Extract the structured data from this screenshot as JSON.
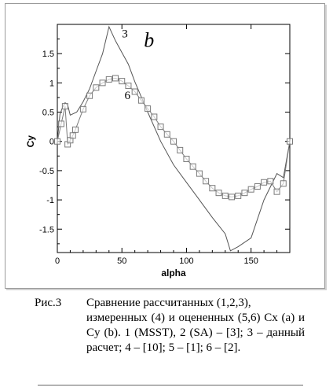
{
  "chart_data": {
    "type": "line",
    "panel_label": "b",
    "xlabel": "alpha",
    "ylabel": "Cy",
    "xlim": [
      0,
      180
    ],
    "ylim": [
      -1.9,
      2.0
    ],
    "x_ticks": [
      0,
      50,
      100,
      150
    ],
    "y_ticks": [
      -1.5,
      -1,
      -0.5,
      0,
      0.5,
      1,
      1.5
    ],
    "grid": false,
    "series": [
      {
        "name": "3",
        "color": "#555555",
        "marker": "none",
        "label_pos": [
          50,
          1.78
        ],
        "points": [
          [
            0,
            0
          ],
          [
            2,
            0.46
          ],
          [
            4,
            0.58
          ],
          [
            6,
            0.66
          ],
          [
            8,
            0.62
          ],
          [
            10,
            0.45
          ],
          [
            15,
            0.5
          ],
          [
            20,
            0.68
          ],
          [
            25,
            0.9
          ],
          [
            30,
            1.2
          ],
          [
            35,
            1.5
          ],
          [
            40,
            1.96
          ],
          [
            45,
            1.72
          ],
          [
            50,
            1.52
          ],
          [
            55,
            1.32
          ],
          [
            60,
            1.02
          ],
          [
            70,
            0.5
          ],
          [
            80,
            0
          ],
          [
            90,
            -0.4
          ],
          [
            100,
            -0.7
          ],
          [
            110,
            -1.0
          ],
          [
            120,
            -1.3
          ],
          [
            130,
            -1.58
          ],
          [
            134,
            -1.87
          ],
          [
            140,
            -1.8
          ],
          [
            150,
            -1.65
          ],
          [
            160,
            -1.0
          ],
          [
            170,
            -0.55
          ],
          [
            175,
            -0.62
          ],
          [
            180,
            0
          ]
        ]
      },
      {
        "name": "6",
        "color": "#7a7a7a",
        "marker": "square",
        "label_pos": [
          52,
          0.72
        ],
        "points": [
          [
            0,
            0
          ],
          [
            3,
            0.3
          ],
          [
            6,
            0.6
          ],
          [
            8,
            -0.05
          ],
          [
            10,
            0.02
          ],
          [
            12,
            0.1
          ],
          [
            14,
            0.2
          ],
          [
            20,
            0.55
          ],
          [
            25,
            0.78
          ],
          [
            30,
            0.92
          ],
          [
            35,
            1.0
          ],
          [
            40,
            1.06
          ],
          [
            45,
            1.08
          ],
          [
            50,
            1.03
          ],
          [
            55,
            0.95
          ],
          [
            60,
            0.85
          ],
          [
            65,
            0.7
          ],
          [
            70,
            0.56
          ],
          [
            75,
            0.42
          ],
          [
            80,
            0.25
          ],
          [
            85,
            0.12
          ],
          [
            90,
            0.0
          ],
          [
            95,
            -0.15
          ],
          [
            100,
            -0.3
          ],
          [
            105,
            -0.43
          ],
          [
            110,
            -0.55
          ],
          [
            115,
            -0.68
          ],
          [
            120,
            -0.8
          ],
          [
            125,
            -0.88
          ],
          [
            130,
            -0.93
          ],
          [
            135,
            -0.95
          ],
          [
            140,
            -0.93
          ],
          [
            145,
            -0.88
          ],
          [
            150,
            -0.82
          ],
          [
            155,
            -0.77
          ],
          [
            160,
            -0.7
          ],
          [
            165,
            -0.68
          ],
          [
            170,
            -0.86
          ],
          [
            175,
            -0.72
          ],
          [
            180,
            0
          ]
        ]
      }
    ]
  },
  "caption": {
    "label": "Рис.3",
    "line1": "Сравнение рассчитанных (1,2,3),",
    "rest": "измеренных (4) и оцененных (5,6) Cx (a) и Cy (b). 1 (MSST), 2 (SA) – [3]; 3 – данный расчет; 4 – [10]; 5 – [1]; 6 – [2]."
  }
}
